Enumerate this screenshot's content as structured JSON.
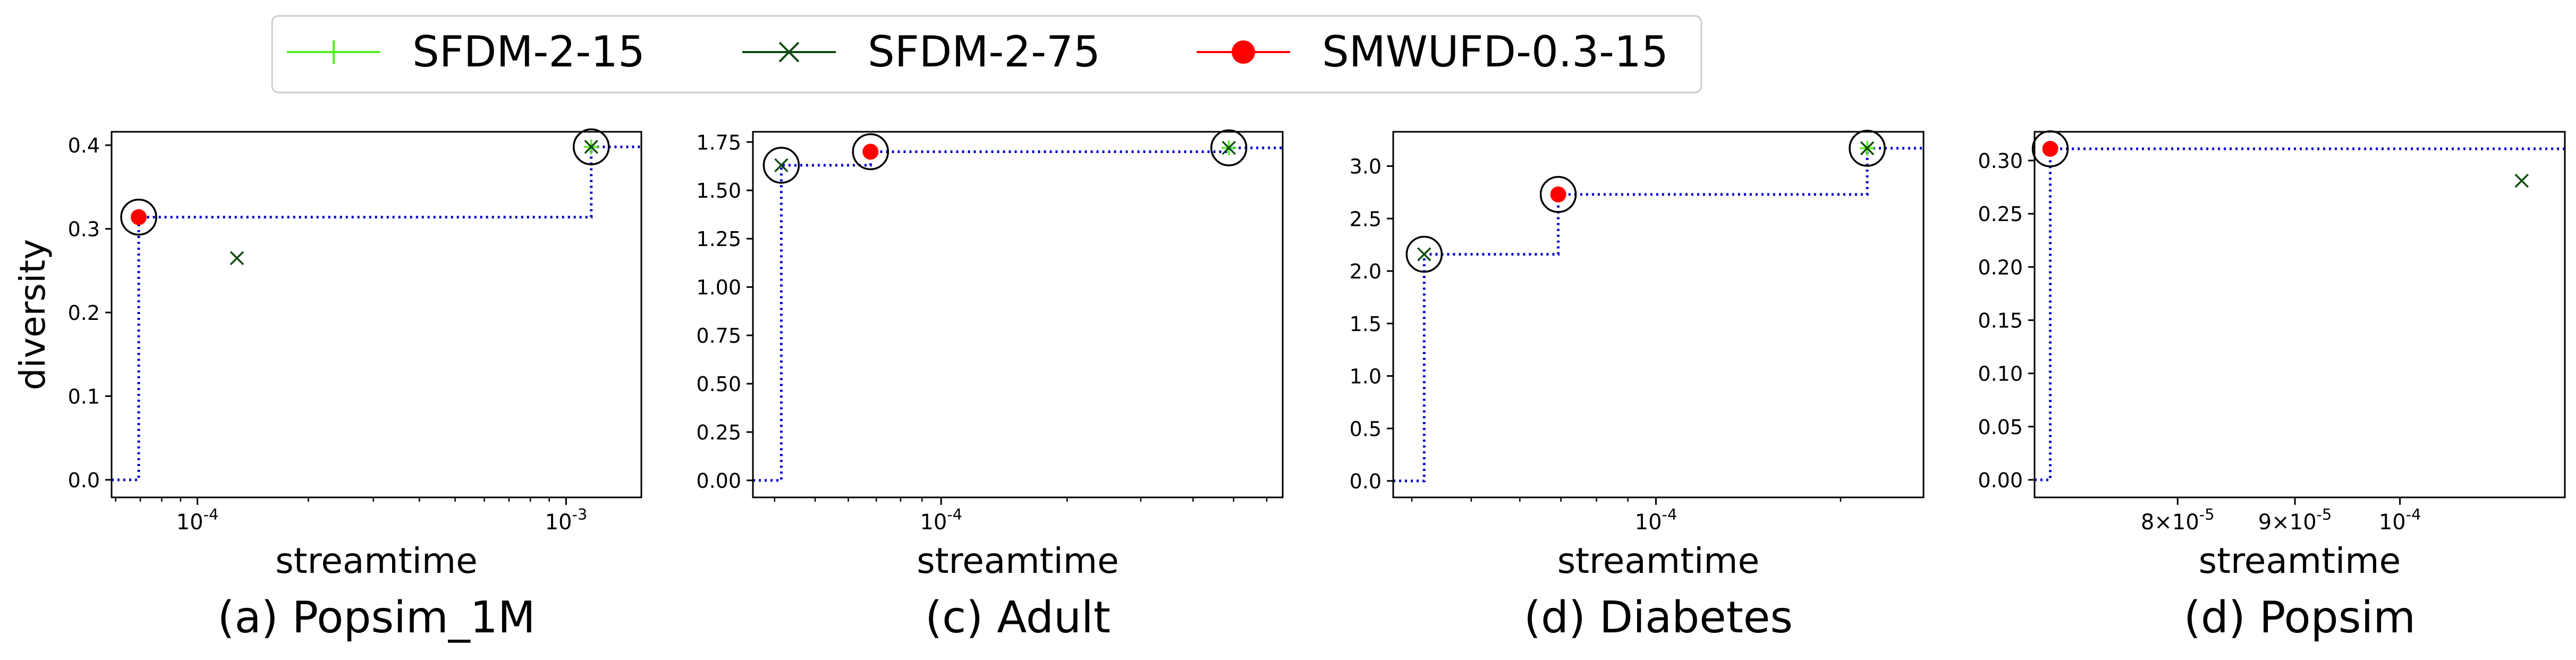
{
  "legend": {
    "items": [
      {
        "label": "SFDM-2-15",
        "color": "#55ee22",
        "marker": "plus"
      },
      {
        "label": "SFDM-2-75",
        "color": "#0f4d0f",
        "marker": "x"
      },
      {
        "label": "SMWUFD-0.3-15",
        "color": "#ff0000",
        "marker": "dot"
      }
    ]
  },
  "colors": {
    "step_line": "#0000cc",
    "axes": "#000000"
  },
  "chart_data": [
    {
      "type": "scatter",
      "xscale": "log",
      "caption": "(a) Popsim_1M",
      "xlabel": "streamtime",
      "ylabel": "diversity",
      "xlim": [
        5.85e-05,
        0.0016
      ],
      "ylim": [
        -0.021,
        0.416
      ],
      "yticks": [
        0.0,
        0.1,
        0.2,
        0.3,
        0.4
      ],
      "ytick_labels": [
        "0.0",
        "0.1",
        "0.2",
        "0.3",
        "0.4"
      ],
      "xticks": [
        0.0001,
        0.001
      ],
      "xtick_labels": [
        "10^-4",
        "10^-3"
      ],
      "minor_xticks": [
        6e-05,
        7e-05,
        8e-05,
        9e-05,
        0.0002,
        0.0003,
        0.0004,
        0.0005,
        0.0006,
        0.0007,
        0.0008,
        0.0009
      ],
      "series": [
        {
          "points": [
            [
              0.00117,
              0.398
            ]
          ]
        },
        {
          "points": [
            [
              0.000128,
              0.265
            ],
            [
              0.00117,
              0.398
            ]
          ]
        },
        {
          "points": [
            [
              6.93e-05,
              0.314
            ]
          ]
        }
      ],
      "pareto_front": [
        [
          6.93e-05,
          0.314
        ],
        [
          0.00117,
          0.398
        ]
      ]
    },
    {
      "type": "scatter",
      "xscale": "log",
      "caption": "(c) Adult",
      "xlabel": "streamtime",
      "ylabel": "",
      "xlim": [
        3.55e-05,
        0.000655
      ],
      "ylim": [
        -0.088,
        1.803
      ],
      "yticks": [
        0.0,
        0.25,
        0.5,
        0.75,
        1.0,
        1.25,
        1.5,
        1.75
      ],
      "ytick_labels": [
        "0.00",
        "0.25",
        "0.50",
        "0.75",
        "1.00",
        "1.25",
        "1.50",
        "1.75"
      ],
      "xticks": [
        0.0001
      ],
      "xtick_labels": [
        "10^-4"
      ],
      "minor_xticks": [
        4e-05,
        5e-05,
        6e-05,
        7e-05,
        8e-05,
        9e-05,
        0.0002,
        0.0003,
        0.0004,
        0.0005,
        0.0006
      ],
      "series": [
        {
          "points": [
            [
              0.000487,
              1.72
            ]
          ]
        },
        {
          "points": [
            [
              4.15e-05,
              1.63
            ],
            [
              0.000487,
              1.72
            ]
          ]
        },
        {
          "points": [
            [
              6.78e-05,
              1.7
            ]
          ]
        }
      ],
      "pareto_front": [
        [
          4.15e-05,
          1.63
        ],
        [
          6.78e-05,
          1.7
        ],
        [
          0.000487,
          1.72
        ]
      ]
    },
    {
      "type": "scatter",
      "xscale": "log",
      "caption": "(d) Diabetes",
      "xlabel": "streamtime",
      "ylabel": "",
      "xlim": [
        3.73e-05,
        0.000273
      ],
      "ylim": [
        -0.157,
        3.327
      ],
      "yticks": [
        0.0,
        0.5,
        1.0,
        1.5,
        2.0,
        2.5,
        3.0
      ],
      "ytick_labels": [
        "0.0",
        "0.5",
        "1.0",
        "1.5",
        "2.0",
        "2.5",
        "3.0"
      ],
      "xticks": [
        0.0001
      ],
      "xtick_labels": [
        "10^-4"
      ],
      "minor_xticks": [
        4e-05,
        5e-05,
        6e-05,
        7e-05,
        8e-05,
        9e-05,
        0.0002
      ],
      "series": [
        {
          "points": [
            [
              0.000221,
              3.17
            ]
          ]
        },
        {
          "points": [
            [
              4.19e-05,
              2.16
            ],
            [
              0.000221,
              3.17
            ]
          ]
        },
        {
          "points": [
            [
              6.93e-05,
              2.73
            ]
          ]
        }
      ],
      "pareto_front": [
        [
          4.19e-05,
          2.16
        ],
        [
          6.93e-05,
          2.73
        ],
        [
          0.000221,
          3.17
        ]
      ]
    },
    {
      "type": "scatter",
      "xscale": "log",
      "caption": "(d) Popsim",
      "xlabel": "streamtime",
      "ylabel": "",
      "xlim": [
        6.93e-05,
        0.000118
      ],
      "ylim": [
        -0.0165,
        0.327
      ],
      "yticks": [
        0.0,
        0.05,
        0.1,
        0.15,
        0.2,
        0.25,
        0.3
      ],
      "ytick_labels": [
        "0.00",
        "0.05",
        "0.10",
        "0.15",
        "0.20",
        "0.25",
        "0.30"
      ],
      "xticks": [
        8e-05,
        9e-05,
        0.0001
      ],
      "xtick_labels": [
        "8×10^-5",
        "9×10^-5",
        "10^-4"
      ],
      "minor_xticks": [],
      "series": [
        {
          "points": []
        },
        {
          "points": [
            [
              0.000113,
              0.281
            ]
          ]
        },
        {
          "points": [
            [
              7.04e-05,
              0.311
            ]
          ]
        }
      ],
      "pareto_front": [
        [
          7.04e-05,
          0.311
        ]
      ]
    }
  ]
}
